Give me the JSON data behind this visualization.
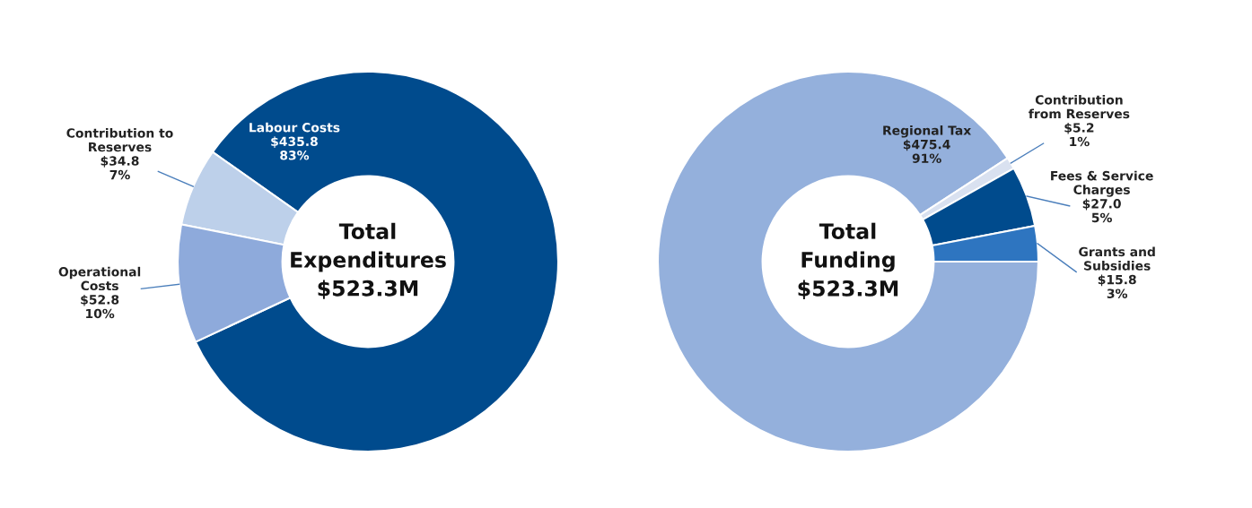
{
  "chart_data": [
    {
      "type": "donut",
      "title": "Total\nExpenditures\n$523.3M",
      "categories": [
        "Labour Costs",
        "Contribution to\nReserves",
        "Operational\nCosts"
      ],
      "values": [
        435.8,
        34.8,
        52.8
      ],
      "colors": [
        "#004b8d",
        "#bdd0ea",
        "#8eaadb"
      ],
      "value_labels": [
        "$435.8\n83%",
        "$34.8\n7%",
        "$52.8\n10%"
      ]
    },
    {
      "type": "donut",
      "title": "Total\nFunding\n$523.3M",
      "categories": [
        "Regional Tax",
        "Contribution\nfrom Reserves",
        "Fees & Service\nCharges",
        "Grants and\nSubsidies"
      ],
      "values": [
        475.4,
        5.2,
        27.0,
        15.8
      ],
      "colors": [
        "#94b0dc",
        "#d9e1f0",
        "#004b8d",
        "#2e75c0"
      ],
      "value_labels": [
        "$475.4\n91%",
        "$5.2\n1%",
        "$27.0\n5%",
        "$15.8\n3%"
      ]
    }
  ]
}
